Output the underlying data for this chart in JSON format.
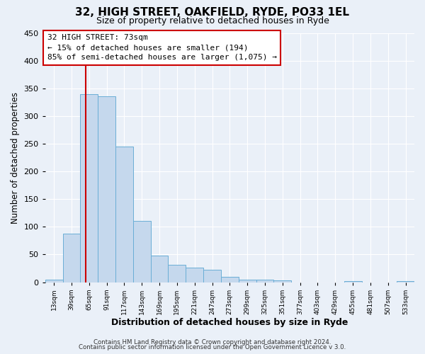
{
  "title": "32, HIGH STREET, OAKFIELD, RYDE, PO33 1EL",
  "subtitle": "Size of property relative to detached houses in Ryde",
  "xlabel": "Distribution of detached houses by size in Ryde",
  "ylabel": "Number of detached properties",
  "bin_labels": [
    "13sqm",
    "39sqm",
    "65sqm",
    "91sqm",
    "117sqm",
    "143sqm",
    "169sqm",
    "195sqm",
    "221sqm",
    "247sqm",
    "273sqm",
    "299sqm",
    "325sqm",
    "351sqm",
    "377sqm",
    "403sqm",
    "429sqm",
    "455sqm",
    "481sqm",
    "507sqm",
    "533sqm"
  ],
  "bar_values": [
    5,
    88,
    340,
    335,
    245,
    110,
    48,
    32,
    26,
    22,
    10,
    5,
    4,
    3,
    0,
    0,
    0,
    2,
    0,
    0,
    2
  ],
  "bar_color": "#c5d8ed",
  "bar_edge_color": "#6aaed6",
  "vline_x_bin": 2,
  "vline_color": "#cc0000",
  "annotation_title": "32 HIGH STREET: 73sqm",
  "annotation_line1": "← 15% of detached houses are smaller (194)",
  "annotation_line2": "85% of semi-detached houses are larger (1,075) →",
  "annotation_box_color": "#ffffff",
  "annotation_box_edge": "#cc0000",
  "ylim": [
    0,
    450
  ],
  "yticks": [
    0,
    50,
    100,
    150,
    200,
    250,
    300,
    350,
    400,
    450
  ],
  "footer_line1": "Contains HM Land Registry data © Crown copyright and database right 2024.",
  "footer_line2": "Contains public sector information licensed under the Open Government Licence v 3.0.",
  "background_color": "#eaf0f8",
  "plot_background": "#eaf0f8",
  "bin_width": 1,
  "n_bins": 21
}
